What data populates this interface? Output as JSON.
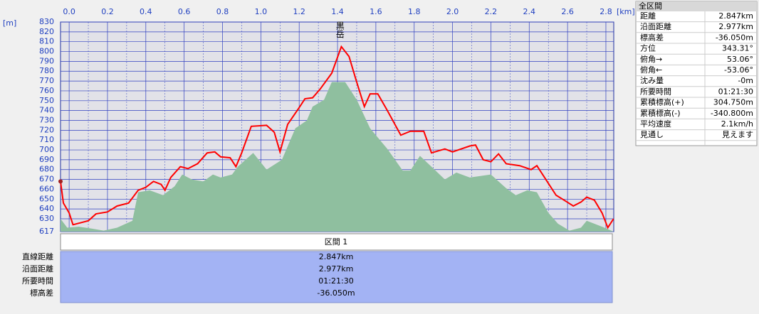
{
  "chart_data": {
    "type": "line",
    "ylabel": "[m]",
    "xlabel": "[km]",
    "xlim": [
      -0.045,
      2.841
    ],
    "ylim": [
      617,
      830
    ],
    "xticks": [
      {
        "value": 0,
        "label": "0.0"
      },
      {
        "value": 0.2,
        "label": "0.2"
      },
      {
        "value": 0.4,
        "label": "0.4"
      },
      {
        "value": 0.6,
        "label": "0.6"
      },
      {
        "value": 0.8,
        "label": "0.8"
      },
      {
        "value": 1,
        "label": "1.0"
      },
      {
        "value": 1.2,
        "label": "1.2"
      },
      {
        "value": 1.4,
        "label": "1.4"
      },
      {
        "value": 1.6,
        "label": "1.6"
      },
      {
        "value": 1.8,
        "label": "1.8"
      },
      {
        "value": 2,
        "label": "2.0"
      },
      {
        "value": 2.2,
        "label": "2.2"
      },
      {
        "value": 2.4,
        "label": "2.4"
      },
      {
        "value": 2.6,
        "label": "2.6"
      },
      {
        "value": 2.8,
        "label": "2.8"
      }
    ],
    "yticks": [
      617,
      630,
      640,
      650,
      660,
      670,
      680,
      690,
      700,
      710,
      720,
      730,
      740,
      750,
      760,
      770,
      780,
      790,
      800,
      810,
      820,
      830
    ],
    "grid": true,
    "annotations": [
      {
        "text": "黒岳",
        "x": 1.41
      }
    ],
    "series": [
      {
        "type": "area",
        "color": "#8fbf9f",
        "x": [
          -0.045,
          -0.01,
          0.05,
          0.12,
          0.18,
          0.25,
          0.33,
          0.36,
          0.42,
          0.49,
          0.55,
          0.59,
          0.64,
          0.7,
          0.75,
          0.79,
          0.85,
          0.88,
          0.96,
          1.03,
          1.11,
          1.18,
          1.24,
          1.27,
          1.33,
          1.37,
          1.44,
          1.5,
          1.57,
          1.66,
          1.74,
          1.78,
          1.83,
          1.89,
          1.96,
          2.02,
          2.09,
          2.2,
          2.28,
          2.33,
          2.39,
          2.44,
          2.5,
          2.55,
          2.61,
          2.67,
          2.7,
          2.78,
          2.84
        ],
        "values": [
          630,
          621,
          622,
          620,
          618,
          621,
          628,
          657,
          659,
          654,
          663,
          675,
          670,
          668,
          675,
          672,
          675,
          683,
          697,
          680,
          690,
          722,
          730,
          744,
          751,
          769,
          769,
          751,
          722,
          701,
          679,
          679,
          694,
          683,
          670,
          677,
          672,
          675,
          661,
          654,
          659,
          657,
          636,
          625,
          618,
          621,
          628,
          622,
          617
        ]
      },
      {
        "type": "line",
        "color": "#ff0000",
        "x": [
          -0.045,
          -0.03,
          0,
          0.02,
          0.06,
          0.1,
          0.14,
          0.2,
          0.25,
          0.31,
          0.36,
          0.4,
          0.44,
          0.48,
          0.5,
          0.53,
          0.58,
          0.62,
          0.67,
          0.72,
          0.76,
          0.79,
          0.84,
          0.87,
          0.9,
          0.95,
          1.03,
          1.07,
          1.1,
          1.14,
          1.2,
          1.23,
          1.27,
          1.31,
          1.37,
          1.42,
          1.46,
          1.5,
          1.54,
          1.57,
          1.61,
          1.66,
          1.73,
          1.78,
          1.85,
          1.89,
          1.96,
          2,
          2.09,
          2.12,
          2.16,
          2.2,
          2.24,
          2.28,
          2.35,
          2.41,
          2.44,
          2.48,
          2.54,
          2.59,
          2.63,
          2.67,
          2.7,
          2.74,
          2.78,
          2.81,
          2.84
        ],
        "values": [
          668,
          646,
          636,
          624,
          626,
          628,
          635,
          637,
          643,
          646,
          659,
          662,
          668,
          665,
          659,
          672,
          683,
          681,
          686,
          697,
          698,
          693,
          692,
          683,
          697,
          724,
          725,
          718,
          698,
          726,
          743,
          752,
          753,
          762,
          778,
          805,
          795,
          769,
          744,
          757,
          757,
          740,
          715,
          719,
          719,
          697,
          701,
          698,
          704,
          705,
          690,
          688,
          696,
          686,
          684,
          680,
          684,
          672,
          654,
          648,
          643,
          647,
          652,
          649,
          636,
          621,
          630
        ]
      }
    ]
  },
  "panel": {
    "title": "全区間",
    "rows": [
      [
        "距離",
        "2.847km"
      ],
      [
        "沿面距離",
        "2.977km"
      ],
      [
        "標高差",
        "-36.050m"
      ],
      [
        "方位",
        "343.31°"
      ],
      [
        "俯角→",
        "53.06°"
      ],
      [
        "俯角←",
        "-53.06°"
      ],
      [
        "沈み量",
        "-0m"
      ],
      [
        "所要時間",
        "01:21:30"
      ],
      [
        "累積標高(+)",
        "304.750m"
      ],
      [
        "累積標高(-)",
        "-340.800m"
      ],
      [
        "平均速度",
        "2.1km/h"
      ],
      [
        "見通し",
        "見えます"
      ]
    ]
  },
  "section": {
    "title": "区間 1",
    "rows": [
      [
        "直線距離",
        "2.847km"
      ],
      [
        "沿面距離",
        "2.977km"
      ],
      [
        "所要時間",
        "01:21:30"
      ],
      [
        "標高差",
        "-36.050m"
      ]
    ]
  }
}
